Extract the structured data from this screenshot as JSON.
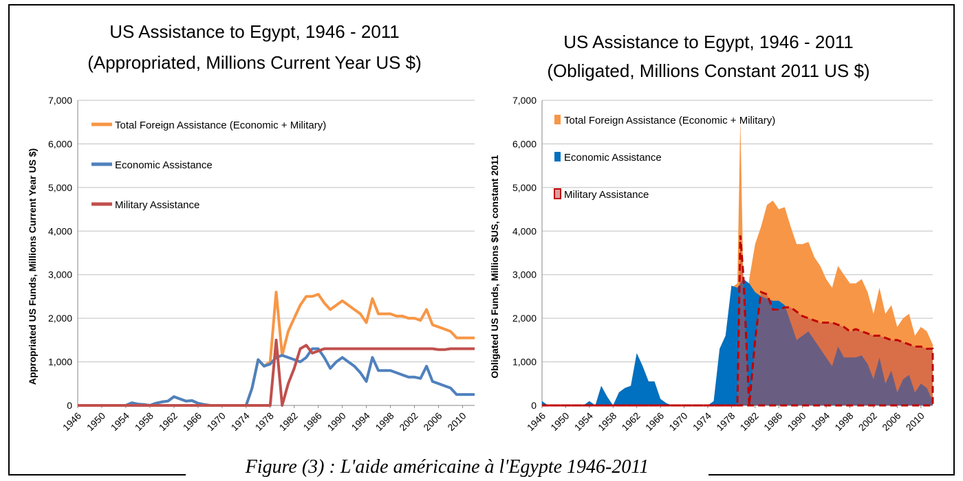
{
  "caption": "Figure (3) : L'aide américaine à l'Egypte 1946-2011",
  "colors": {
    "total": "#F79646",
    "economic": "#4F81BD",
    "military": "#C0504D",
    "economic_area": "#0070C0",
    "military_area_fill": "rgba(192,80,77,0.55)",
    "military_area_line": "#C00000",
    "grid": "#BFBFBF",
    "axis": "#868686"
  },
  "chart_data": [
    {
      "type": "line",
      "title": "US Assistance to Egypt, 1946 - 2011",
      "subtitle": "(Appropriated, Millions Current Year US $)",
      "xlabel": "",
      "ylabel": "Appropriated US Funds, Millions Current Year US $)",
      "ylim": [
        0,
        7000
      ],
      "yticks": [
        "0",
        "1,000",
        "2,000",
        "3,000",
        "4,000",
        "5,000",
        "6,000",
        "7,000"
      ],
      "xticks": [
        "1946",
        "1950",
        "1954",
        "1958",
        "1962",
        "1966",
        "1970",
        "1974",
        "1978",
        "1982",
        "1986",
        "1990",
        "1994",
        "1998",
        "2002",
        "2006",
        "2010"
      ],
      "x_start": 1946,
      "x_end": 2012,
      "grid": true,
      "legend_position": "top-left",
      "legend": [
        "Total Foreign Assistance (Economic + Military)",
        "Economic Assistance",
        "Military Assistance"
      ],
      "series": [
        {
          "name": "Total Foreign Assistance (Economic + Military)",
          "key": "total",
          "x": [
            1946,
            1954,
            1955,
            1956,
            1957,
            1958,
            1959,
            1960,
            1961,
            1962,
            1963,
            1964,
            1965,
            1966,
            1967,
            1968,
            1974,
            1975,
            1976,
            1977,
            1978,
            1979,
            1980,
            1981,
            1982,
            1983,
            1984,
            1985,
            1986,
            1987,
            1988,
            1989,
            1990,
            1991,
            1992,
            1993,
            1994,
            1995,
            1996,
            1997,
            1998,
            1999,
            2000,
            2001,
            2002,
            2003,
            2004,
            2005,
            2006,
            2007,
            2008,
            2009,
            2010,
            2011,
            2012
          ],
          "y": [
            0,
            0,
            60,
            30,
            20,
            0,
            50,
            80,
            100,
            200,
            150,
            100,
            110,
            50,
            20,
            0,
            0,
            400,
            1050,
            900,
            1000,
            2600,
            1150,
            1700,
            2000,
            2300,
            2500,
            2500,
            2550,
            2350,
            2200,
            2300,
            2400,
            2300,
            2200,
            2100,
            1900,
            2450,
            2100,
            2100,
            2100,
            2050,
            2050,
            2000,
            2000,
            1950,
            2200,
            1850,
            1800,
            1750,
            1700,
            1550,
            1550,
            1550,
            1550
          ]
        },
        {
          "name": "Economic Assistance",
          "key": "economic",
          "x": [
            1946,
            1954,
            1955,
            1956,
            1957,
            1958,
            1959,
            1960,
            1961,
            1962,
            1963,
            1964,
            1965,
            1966,
            1967,
            1968,
            1974,
            1975,
            1976,
            1977,
            1978,
            1979,
            1980,
            1981,
            1982,
            1983,
            1984,
            1985,
            1986,
            1987,
            1988,
            1989,
            1990,
            1991,
            1992,
            1993,
            1994,
            1995,
            1996,
            1997,
            1998,
            1999,
            2000,
            2001,
            2002,
            2003,
            2004,
            2005,
            2006,
            2007,
            2008,
            2009,
            2010,
            2011,
            2012
          ],
          "y": [
            0,
            0,
            60,
            30,
            20,
            0,
            50,
            80,
            100,
            200,
            150,
            100,
            110,
            50,
            20,
            0,
            0,
            400,
            1050,
            900,
            950,
            1100,
            1150,
            1100,
            1050,
            1000,
            1100,
            1300,
            1300,
            1100,
            850,
            1000,
            1100,
            1000,
            900,
            750,
            550,
            1100,
            800,
            800,
            800,
            750,
            700,
            650,
            650,
            620,
            900,
            550,
            500,
            450,
            400,
            250,
            250,
            250,
            250
          ]
        },
        {
          "name": "Military Assistance",
          "key": "military",
          "x": [
            1946,
            1977,
            1978,
            1979,
            1980,
            1981,
            1982,
            1983,
            1984,
            1985,
            1986,
            1987,
            1988,
            2005,
            2006,
            2007,
            2008,
            2009,
            2010,
            2011,
            2012
          ],
          "y": [
            0,
            0,
            0,
            1500,
            0,
            500,
            850,
            1300,
            1380,
            1200,
            1250,
            1300,
            1300,
            1300,
            1280,
            1280,
            1300,
            1300,
            1300,
            1300,
            1300
          ]
        }
      ]
    },
    {
      "type": "area",
      "title": "US Assistance to Egypt, 1946 - 2011",
      "subtitle": "(Obligated, Millions Constant 2011 US $)",
      "xlabel": "",
      "ylabel": "Obligated US Funds, Millions $US, constant 2011",
      "ylim": [
        0,
        7000
      ],
      "yticks": [
        "0",
        "1,000",
        "2,000",
        "3,000",
        "4,000",
        "5,000",
        "6,000",
        "7,000"
      ],
      "xticks": [
        "1946",
        "1950",
        "1954",
        "1958",
        "1962",
        "1966",
        "1970",
        "1974",
        "1978",
        "1982",
        "1986",
        "1990",
        "1994",
        "1998",
        "2002",
        "2006",
        "2010"
      ],
      "x_start": 1946,
      "x_end": 2012,
      "grid": true,
      "legend_position": "top-left",
      "legend": [
        "Total Foreign Assistance (Economic + Military)",
        "Economic Assistance",
        "Military Assistance"
      ],
      "series": [
        {
          "name": "Total Foreign Assistance (Economic + Military)",
          "key": "total",
          "x": [
            1946,
            1947,
            1953,
            1954,
            1955,
            1956,
            1957,
            1958,
            1959,
            1960,
            1961,
            1962,
            1963,
            1964,
            1965,
            1966,
            1967,
            1968,
            1974,
            1975,
            1976,
            1977,
            1978,
            1979,
            1979.5,
            1980,
            1980.5,
            1981,
            1982,
            1983,
            1984,
            1985,
            1986,
            1987,
            1988,
            1989,
            1990,
            1991,
            1992,
            1993,
            1994,
            1995,
            1996,
            1997,
            1998,
            1999,
            2000,
            2001,
            2002,
            2003,
            2004,
            2005,
            2006,
            2007,
            2008,
            2009,
            2010,
            2011,
            2012
          ],
          "y": [
            100,
            0,
            0,
            100,
            0,
            450,
            200,
            0,
            300,
            400,
            450,
            1200,
            900,
            550,
            550,
            150,
            50,
            0,
            0,
            100,
            1300,
            1600,
            2700,
            2800,
            6550,
            2900,
            1200,
            2900,
            3700,
            4100,
            4600,
            4700,
            4500,
            4550,
            4100,
            3700,
            3700,
            3750,
            3400,
            3200,
            2900,
            2700,
            3200,
            3000,
            2800,
            2800,
            2900,
            2600,
            2100,
            2700,
            2100,
            2300,
            1800,
            2000,
            2100,
            1600,
            1800,
            1700,
            1400
          ]
        },
        {
          "name": "Economic Assistance",
          "key": "economic",
          "x": [
            1946,
            1947,
            1953,
            1954,
            1955,
            1956,
            1957,
            1958,
            1959,
            1960,
            1961,
            1962,
            1963,
            1964,
            1965,
            1966,
            1967,
            1968,
            1974,
            1975,
            1976,
            1977,
            1978,
            1979,
            1980,
            1981,
            1982,
            1983,
            1984,
            1985,
            1986,
            1987,
            1988,
            1989,
            1990,
            1991,
            1992,
            1993,
            1994,
            1995,
            1996,
            1997,
            1998,
            1999,
            2000,
            2001,
            2002,
            2003,
            2004,
            2005,
            2006,
            2007,
            2008,
            2009,
            2010,
            2011,
            2012
          ],
          "y": [
            100,
            0,
            0,
            100,
            0,
            450,
            200,
            0,
            300,
            400,
            450,
            1200,
            900,
            550,
            550,
            150,
            50,
            0,
            0,
            100,
            1300,
            1600,
            2750,
            2700,
            2900,
            2800,
            2600,
            2500,
            2450,
            2400,
            2400,
            2300,
            1900,
            1500,
            1600,
            1700,
            1500,
            1300,
            1100,
            900,
            1350,
            1100,
            1100,
            1100,
            1150,
            950,
            600,
            1100,
            500,
            800,
            300,
            600,
            700,
            300,
            500,
            400,
            100
          ]
        },
        {
          "name": "Military Assistance",
          "key": "military",
          "x": [
            1946,
            1978,
            1979,
            1979.5,
            1980,
            1981,
            1982,
            1983,
            1984,
            1985,
            1986,
            1987,
            1988,
            1989,
            1990,
            1991,
            1992,
            1993,
            1994,
            1995,
            1996,
            1997,
            1998,
            1999,
            2000,
            2001,
            2002,
            2003,
            2004,
            2005,
            2006,
            2007,
            2008,
            2009,
            2010,
            2011,
            2012
          ],
          "y": [
            0,
            0,
            0,
            3900,
            3000,
            0,
            1500,
            2600,
            2550,
            2200,
            2200,
            2250,
            2250,
            2150,
            2050,
            2000,
            1950,
            1900,
            1900,
            1900,
            1850,
            1800,
            1700,
            1750,
            1700,
            1650,
            1600,
            1600,
            1550,
            1500,
            1500,
            1450,
            1400,
            1350,
            1350,
            1300,
            1300
          ]
        }
      ]
    }
  ]
}
